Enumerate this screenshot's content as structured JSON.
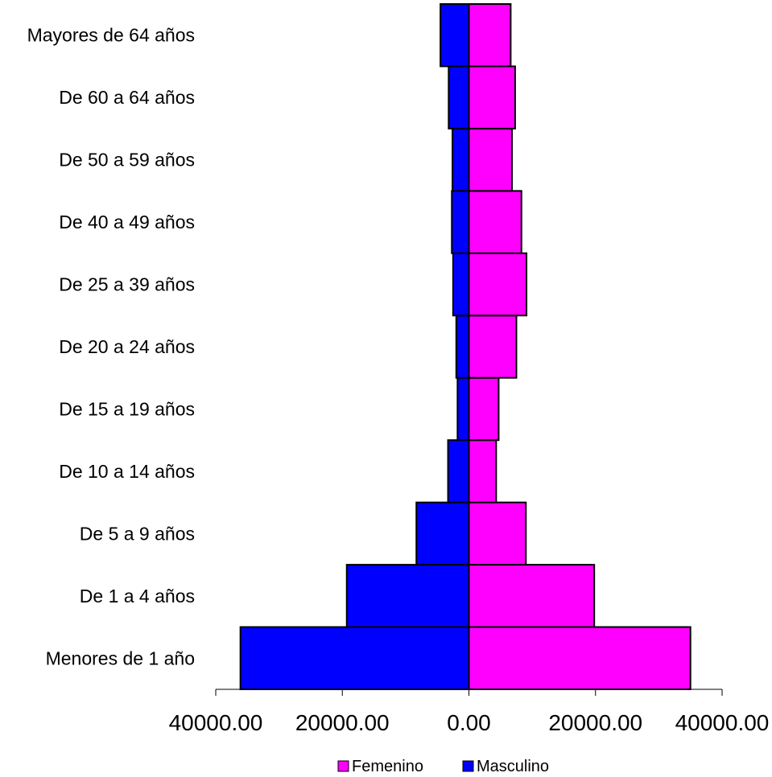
{
  "chart_data": {
    "type": "bar",
    "orientation": "horizontal",
    "subtype": "population-pyramid",
    "categories": [
      "Menores de 1 año",
      "De 1 a 4 años",
      "De 5 a 9 años",
      "De 10 a 14 años",
      "De 15 a 19 años",
      "De 20 a 24 años",
      "De 25 a 39 años",
      "De 40 a 49 años",
      "De 50 a 59 años",
      "De 60 a 64 años",
      "Mayores de 64 años"
    ],
    "series": [
      {
        "name": "Femenino",
        "color": "#FF00FF",
        "side": "right",
        "values": [
          35000,
          19800,
          9000,
          4300,
          4700,
          7500,
          9100,
          8300,
          6800,
          7300,
          6600
        ]
      },
      {
        "name": "Masculino",
        "color": "#0000FF",
        "side": "left",
        "values": [
          36100,
          19300,
          8300,
          3300,
          1800,
          2000,
          2500,
          2700,
          2600,
          3200,
          4500
        ]
      }
    ],
    "xlim": [
      -40000,
      40000
    ],
    "xticks": [
      -40000,
      -20000,
      0,
      20000,
      40000
    ],
    "xtick_labels": [
      "40000.00",
      "20000.00",
      "0.00",
      "20000.00",
      "40000.00"
    ],
    "title": "",
    "xlabel": "",
    "ylabel": "",
    "grid": false,
    "legend_position": "bottom-center"
  }
}
